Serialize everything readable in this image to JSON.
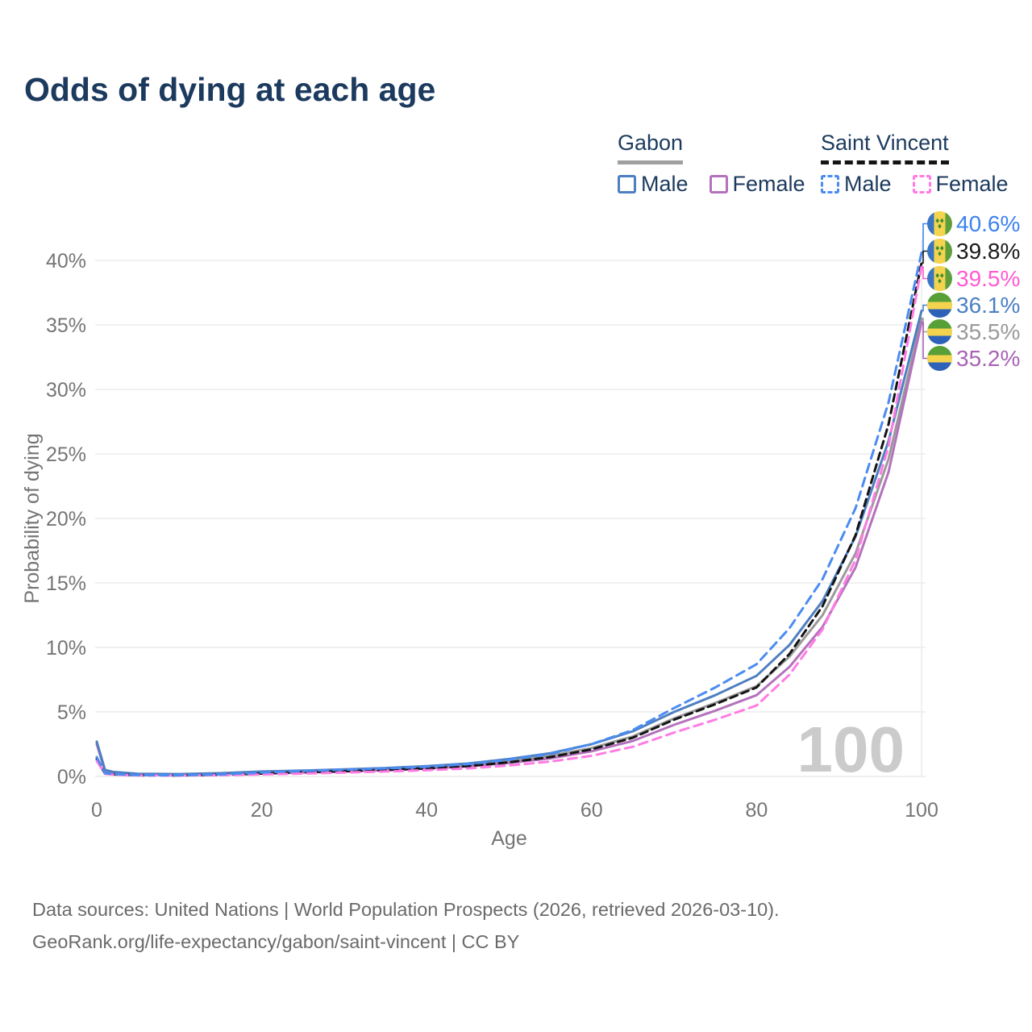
{
  "title": "Odds of dying at each age",
  "watermark": "100",
  "legend": {
    "groups": [
      {
        "name": "Gabon",
        "line_style": "solid",
        "underline_color": "#a0a0a0",
        "items": [
          {
            "label": "Male",
            "color": "#4e7fc0"
          },
          {
            "label": "Female",
            "color": "#b472bc"
          }
        ]
      },
      {
        "name": "Saint Vincent",
        "line_style": "dashed",
        "underline_color": "#141414",
        "items": [
          {
            "label": "Male",
            "color": "#4b8cf2"
          },
          {
            "label": "Female",
            "color": "#ff7ce3"
          }
        ]
      }
    ]
  },
  "chart_data": {
    "type": "line",
    "title": "Odds of dying at each age",
    "xlabel": "Age",
    "ylabel": "Probability of dying",
    "xlim": [
      0,
      100
    ],
    "ylim": [
      0,
      43
    ],
    "xticks": [
      0,
      20,
      40,
      60,
      80,
      100
    ],
    "yticks": [
      0,
      5,
      10,
      15,
      20,
      25,
      30,
      35,
      40
    ],
    "ytick_format": "percent",
    "grid": "horizontal",
    "x": [
      0,
      1,
      2,
      5,
      10,
      15,
      20,
      25,
      30,
      35,
      40,
      45,
      50,
      55,
      60,
      65,
      70,
      75,
      80,
      84,
      88,
      92,
      96,
      100
    ],
    "series": [
      {
        "name": "Gabon",
        "color": "#9a9a9a",
        "dash": null,
        "values": [
          2.6,
          0.45,
          0.3,
          0.18,
          0.15,
          0.2,
          0.3,
          0.38,
          0.47,
          0.57,
          0.7,
          0.9,
          1.2,
          1.6,
          2.2,
          3.1,
          4.5,
          5.7,
          7.0,
          9.3,
          12.5,
          17.3,
          24.6,
          35.5
        ]
      },
      {
        "name": "Gabon Female",
        "color": "#b472bc",
        "dash": null,
        "values": [
          2.5,
          0.4,
          0.28,
          0.16,
          0.13,
          0.17,
          0.23,
          0.3,
          0.38,
          0.48,
          0.6,
          0.78,
          1.05,
          1.4,
          1.95,
          2.75,
          4.0,
          5.1,
          6.3,
          8.5,
          11.6,
          16.2,
          23.6,
          35.2
        ]
      },
      {
        "name": "Gabon Male",
        "color": "#4e7fc0",
        "dash": null,
        "values": [
          2.7,
          0.5,
          0.35,
          0.2,
          0.18,
          0.25,
          0.38,
          0.45,
          0.55,
          0.65,
          0.8,
          1.0,
          1.35,
          1.8,
          2.5,
          3.5,
          5.0,
          6.3,
          7.8,
          10.2,
          13.6,
          18.6,
          26.0,
          36.1
        ]
      },
      {
        "name": "Saint Vincent",
        "color": "#141414",
        "dash": "9 6",
        "values": [
          1.35,
          0.22,
          0.16,
          0.09,
          0.08,
          0.12,
          0.22,
          0.32,
          0.4,
          0.5,
          0.62,
          0.8,
          1.1,
          1.5,
          2.1,
          3.0,
          4.4,
          5.6,
          6.9,
          9.5,
          13.2,
          18.7,
          27.3,
          39.8
        ]
      },
      {
        "name": "Saint Vincent Female",
        "color": "#ff7ce3",
        "dash": "11 7",
        "values": [
          1.2,
          0.2,
          0.14,
          0.08,
          0.07,
          0.1,
          0.15,
          0.22,
          0.3,
          0.38,
          0.48,
          0.62,
          0.85,
          1.15,
          1.6,
          2.3,
          3.4,
          4.4,
          5.5,
          7.9,
          11.4,
          16.8,
          25.6,
          39.5
        ]
      },
      {
        "name": "Saint Vincent Male",
        "color": "#4b8cf2",
        "dash": "11 7",
        "values": [
          1.5,
          0.25,
          0.18,
          0.1,
          0.09,
          0.15,
          0.3,
          0.42,
          0.52,
          0.62,
          0.75,
          0.95,
          1.3,
          1.75,
          2.5,
          3.6,
          5.3,
          6.9,
          8.7,
          11.5,
          15.3,
          20.8,
          29.0,
          40.6
        ]
      }
    ],
    "legend_position": "top-right"
  },
  "endpoints": [
    {
      "series": "Saint Vincent Male",
      "flag": "saint-vincent",
      "value": "40.6%",
      "line_value": 40.6,
      "color": "#3c82f0"
    },
    {
      "series": "Saint Vincent",
      "flag": "saint-vincent",
      "value": "39.8%",
      "line_value": 39.8,
      "color": "#1a1a1a"
    },
    {
      "series": "Saint Vincent Female",
      "flag": "saint-vincent",
      "value": "39.5%",
      "line_value": 39.5,
      "color": "#ff5ad2"
    },
    {
      "series": "Gabon Male",
      "flag": "gabon",
      "value": "36.1%",
      "line_value": 36.1,
      "color": "#4b7fc4"
    },
    {
      "series": "Gabon",
      "flag": "gabon",
      "value": "35.5%",
      "line_value": 35.5,
      "color": "#9a9a9a"
    },
    {
      "series": "Gabon Female",
      "flag": "gabon",
      "value": "35.2%",
      "line_value": 35.2,
      "color": "#a863b5"
    }
  ],
  "flag_colors": {
    "saint_vincent": {
      "blue": "#3a75c4",
      "yellow": "#f4d44e",
      "green": "#5b9e3a",
      "diamond": "#3d8e33"
    },
    "gabon": {
      "green": "#57a038",
      "yellow": "#f4d44e",
      "blue": "#2e62b8"
    }
  },
  "footer": {
    "line1": "Data sources: United Nations | World Population Prospects (2026, retrieved 2026-03-10).",
    "line2": "GeoRank.org/life-expectancy/gabon/saint-vincent | CC BY"
  }
}
